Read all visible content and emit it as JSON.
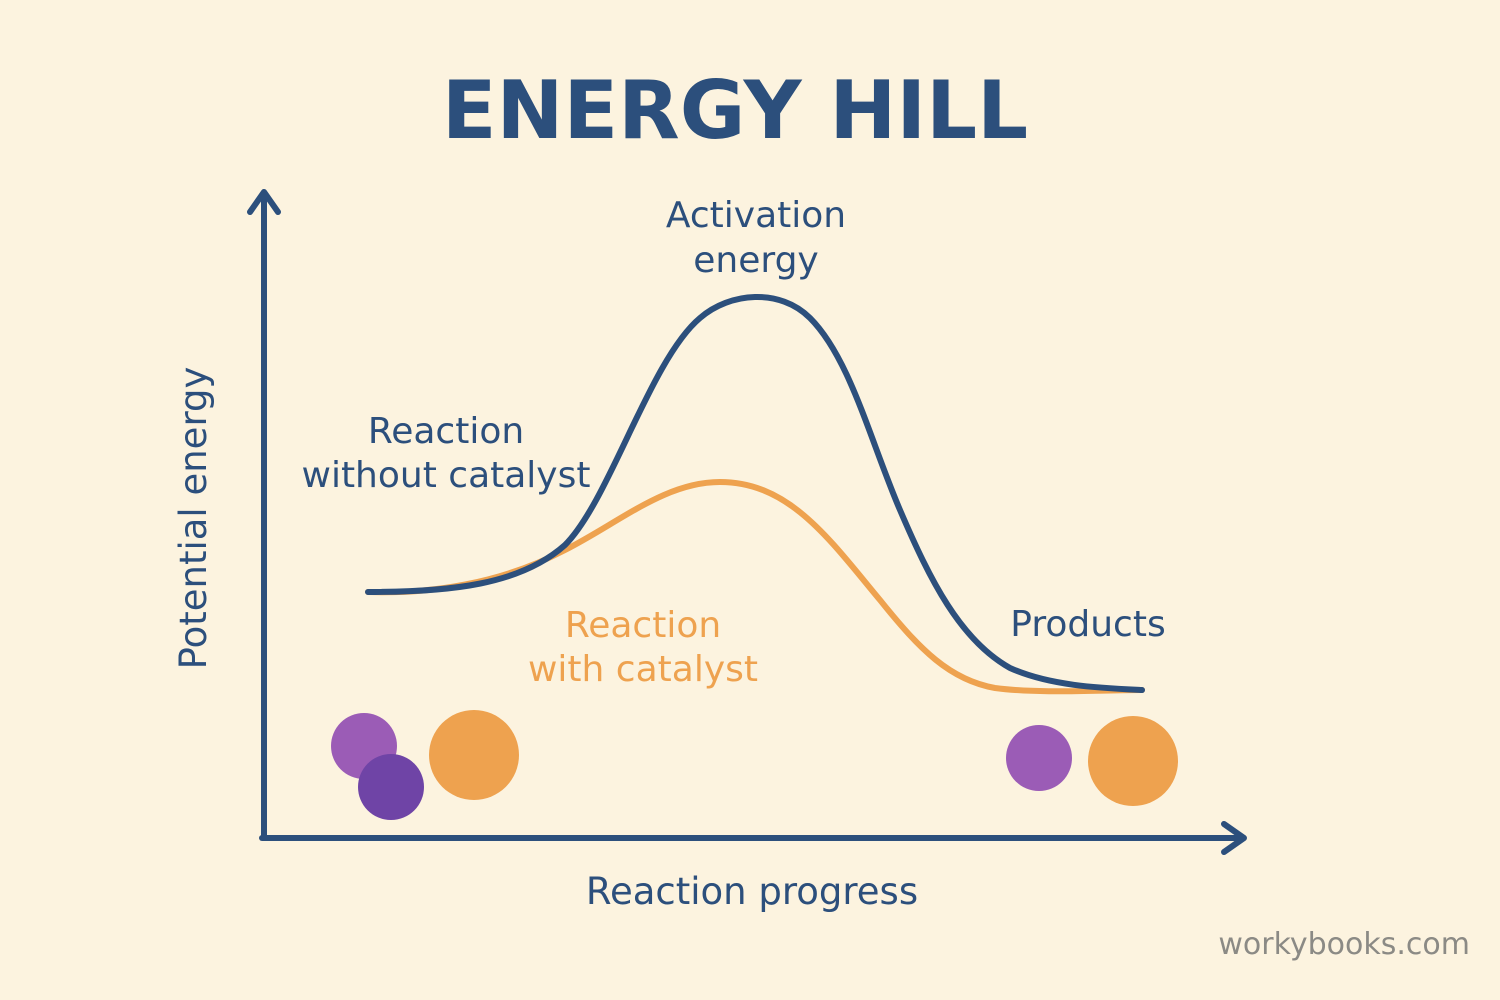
{
  "title": "ENERGY HILL",
  "axes": {
    "x_label": "Reaction progress",
    "y_label": "Potential energy"
  },
  "curves": [
    {
      "name": "without-catalyst",
      "label_lines": [
        "Reaction",
        "without catalyst"
      ],
      "color": "#2c4f7c"
    },
    {
      "name": "with-catalyst",
      "label_lines": [
        "Reaction",
        "with catalyst"
      ],
      "color": "#eea24f"
    }
  ],
  "annotations": {
    "activation_energy_lines": [
      "Activation",
      "energy"
    ],
    "products": "Products"
  },
  "molecules": {
    "reactants": [
      {
        "name": "light-purple-molecule",
        "color": "#9b5cb6"
      },
      {
        "name": "dark-purple-molecule",
        "color": "#6f44a6"
      },
      {
        "name": "orange-molecule",
        "color": "#eea24f"
      }
    ],
    "products": [
      {
        "name": "purple-molecule",
        "color": "#9b5cb6"
      },
      {
        "name": "orange-molecule",
        "color": "#eea24f"
      }
    ]
  },
  "colors": {
    "background": "#fcf3df",
    "axis": "#2c4f7c",
    "text": "#2c4f7c"
  },
  "watermark": "workybooks.com"
}
